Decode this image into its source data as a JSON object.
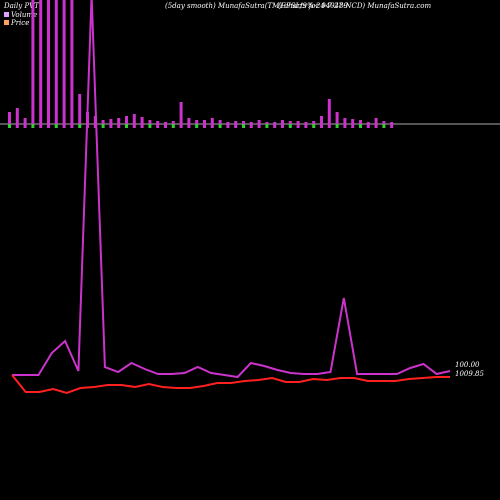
{
  "header": {
    "left": "Daily PVT",
    "center": "(5day smooth) MunafaSutra(TM) charts for 940489",
    "right": "(EFSL/9%-24-7-27-NCD) MunafaSutra.com"
  },
  "legend": [
    {
      "label": "Volume",
      "color": "#e0a0ff"
    },
    {
      "label": "Price",
      "color": "#ffa060"
    }
  ],
  "chart_data": {
    "type": "line",
    "series": [
      {
        "name": "Volume",
        "kind": "bar",
        "color": "#cc33cc",
        "values": [
          12,
          16,
          6,
          250,
          250,
          250,
          250,
          250,
          250,
          30,
          12,
          8,
          4,
          5,
          6,
          8,
          10,
          7,
          4,
          3,
          2,
          3,
          22,
          6,
          4,
          4,
          6,
          4,
          2,
          3,
          3,
          2,
          4,
          2,
          2,
          4,
          3,
          3,
          2,
          3,
          8,
          25,
          12,
          6,
          5,
          4,
          2,
          6,
          3,
          2
        ]
      },
      {
        "name": "PVT",
        "kind": "line",
        "color": "#cc33cc",
        "values": [
          375,
          375,
          375,
          353,
          341,
          371,
          -5,
          367,
          372,
          363,
          369,
          374,
          374,
          373,
          367,
          373,
          375,
          377,
          363,
          366,
          370,
          373,
          374,
          374,
          372,
          298,
          374,
          374,
          374,
          374,
          368,
          364,
          374,
          371
        ]
      },
      {
        "name": "Price",
        "kind": "line",
        "color": "#ff2020",
        "values": [
          375,
          392,
          392,
          389,
          393,
          388,
          387,
          385,
          385,
          387,
          384,
          387,
          388,
          388,
          386,
          383,
          383,
          381,
          380,
          378,
          382,
          382,
          379,
          380,
          378,
          378,
          381,
          381,
          381,
          379,
          378,
          377,
          377
        ]
      }
    ],
    "last_value_label": "100.00",
    "last_price_label": "1009.85"
  }
}
